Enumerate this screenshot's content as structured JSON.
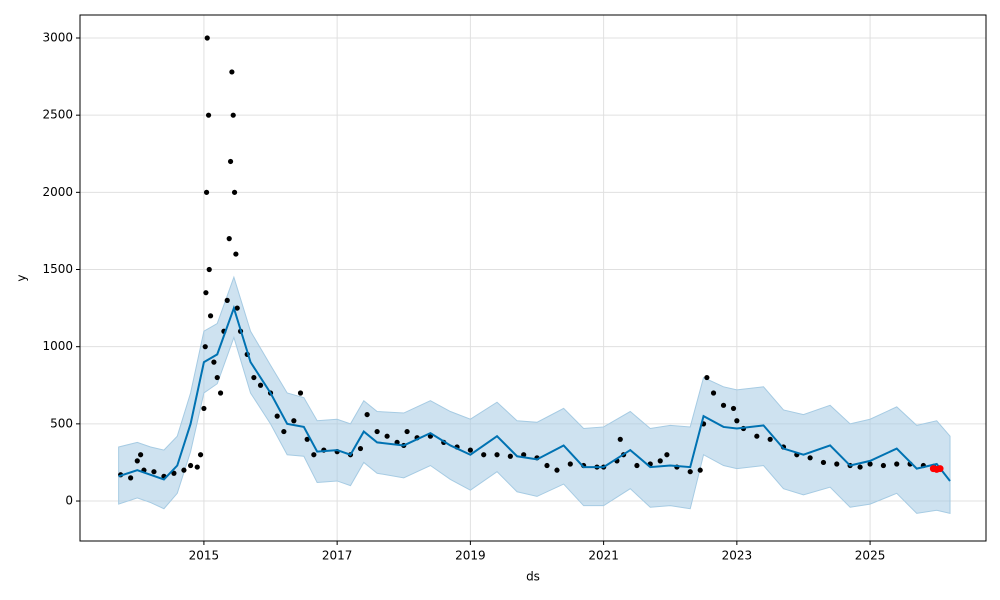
{
  "chart_data": {
    "type": "scatter",
    "xlabel": "ds",
    "ylabel": "y",
    "xlim": [
      2013.14,
      2026.74
    ],
    "ylim": [
      -259,
      3149
    ],
    "xticks": [
      2015,
      2017,
      2019,
      2021,
      2023,
      2025
    ],
    "yticks": [
      0,
      500,
      1000,
      1500,
      2000,
      2500,
      3000
    ],
    "grid": true,
    "forecast": {
      "color": "#0072b2",
      "band_color": "#a6cbe3",
      "x": [
        2013.72,
        2014.0,
        2014.2,
        2014.4,
        2014.6,
        2014.8,
        2015.0,
        2015.2,
        2015.45,
        2015.7,
        2016.0,
        2016.25,
        2016.5,
        2016.7,
        2017.0,
        2017.2,
        2017.4,
        2017.6,
        2018.0,
        2018.4,
        2018.7,
        2019.0,
        2019.4,
        2019.7,
        2020.0,
        2020.4,
        2020.7,
        2021.0,
        2021.4,
        2021.7,
        2022.0,
        2022.3,
        2022.5,
        2022.8,
        2023.0,
        2023.4,
        2023.7,
        2024.0,
        2024.4,
        2024.7,
        2025.0,
        2025.4,
        2025.7,
        2026.0,
        2026.2
      ],
      "values": [
        160,
        200,
        170,
        140,
        230,
        500,
        900,
        950,
        1250,
        900,
        700,
        500,
        480,
        320,
        330,
        300,
        450,
        380,
        360,
        440,
        360,
        300,
        420,
        290,
        270,
        360,
        220,
        220,
        330,
        220,
        230,
        220,
        550,
        480,
        470,
        490,
        340,
        300,
        360,
        230,
        260,
        340,
        210,
        240,
        130
      ],
      "lower": [
        -20,
        20,
        -10,
        -50,
        50,
        320,
        700,
        760,
        1060,
        700,
        500,
        300,
        290,
        120,
        130,
        100,
        250,
        180,
        150,
        230,
        140,
        70,
        190,
        60,
        30,
        110,
        -30,
        -30,
        80,
        -40,
        -30,
        -50,
        300,
        230,
        210,
        230,
        80,
        40,
        90,
        -40,
        -20,
        50,
        -80,
        -60,
        -80
      ],
      "upper": [
        350,
        380,
        350,
        330,
        420,
        700,
        1100,
        1150,
        1450,
        1100,
        880,
        700,
        670,
        520,
        530,
        500,
        650,
        580,
        570,
        650,
        580,
        530,
        640,
        520,
        510,
        600,
        470,
        480,
        580,
        470,
        490,
        480,
        800,
        740,
        720,
        740,
        590,
        560,
        620,
        500,
        530,
        610,
        490,
        520,
        420
      ]
    },
    "points": {
      "color": "#000000",
      "x": [
        2013.75,
        2013.9,
        2014.0,
        2014.05,
        2014.1,
        2014.25,
        2014.4,
        2014.55,
        2014.7,
        2014.8,
        2014.9,
        2014.95,
        2015.0,
        2015.02,
        2015.03,
        2015.04,
        2015.05,
        2015.07,
        2015.08,
        2015.1,
        2015.15,
        2015.2,
        2015.25,
        2015.3,
        2015.35,
        2015.38,
        2015.4,
        2015.42,
        2015.44,
        2015.46,
        2015.48,
        2015.5,
        2015.55,
        2015.65,
        2015.75,
        2015.85,
        2016.0,
        2016.1,
        2016.2,
        2016.35,
        2016.45,
        2016.55,
        2016.65,
        2016.8,
        2017.0,
        2017.2,
        2017.35,
        2017.45,
        2017.6,
        2017.75,
        2017.9,
        2018.0,
        2018.05,
        2018.2,
        2018.4,
        2018.6,
        2018.8,
        2019.0,
        2019.2,
        2019.4,
        2019.6,
        2019.8,
        2020.0,
        2020.15,
        2020.3,
        2020.5,
        2020.7,
        2020.9,
        2021.0,
        2021.2,
        2021.25,
        2021.3,
        2021.5,
        2021.7,
        2021.85,
        2021.95,
        2022.1,
        2022.3,
        2022.45,
        2022.5,
        2022.55,
        2022.65,
        2022.8,
        2022.95,
        2023.0,
        2023.1,
        2023.3,
        2023.5,
        2023.7,
        2023.9,
        2024.1,
        2024.3,
        2024.5,
        2024.7,
        2024.85,
        2025.0,
        2025.2,
        2025.4,
        2025.6,
        2025.8,
        2025.95
      ],
      "values": [
        170,
        150,
        260,
        300,
        200,
        190,
        160,
        180,
        200,
        230,
        220,
        300,
        600,
        1000,
        1350,
        2000,
        3000,
        2500,
        1500,
        1200,
        900,
        800,
        700,
        1100,
        1300,
        1700,
        2200,
        2780,
        2500,
        2000,
        1600,
        1250,
        1100,
        950,
        800,
        750,
        700,
        550,
        450,
        520,
        700,
        400,
        300,
        330,
        320,
        300,
        340,
        560,
        450,
        420,
        380,
        360,
        450,
        410,
        420,
        380,
        350,
        330,
        300,
        300,
        290,
        300,
        280,
        230,
        200,
        240,
        230,
        220,
        220,
        260,
        400,
        300,
        230,
        240,
        260,
        300,
        220,
        190,
        200,
        500,
        800,
        700,
        620,
        600,
        520,
        470,
        420,
        400,
        350,
        300,
        280,
        250,
        240,
        230,
        220,
        240,
        230,
        240,
        240,
        230,
        225
      ]
    },
    "recent": {
      "color": "#ff0000",
      "x": [
        2025.95,
        2026.0,
        2026.05
      ],
      "values": [
        210,
        205,
        210
      ]
    }
  }
}
